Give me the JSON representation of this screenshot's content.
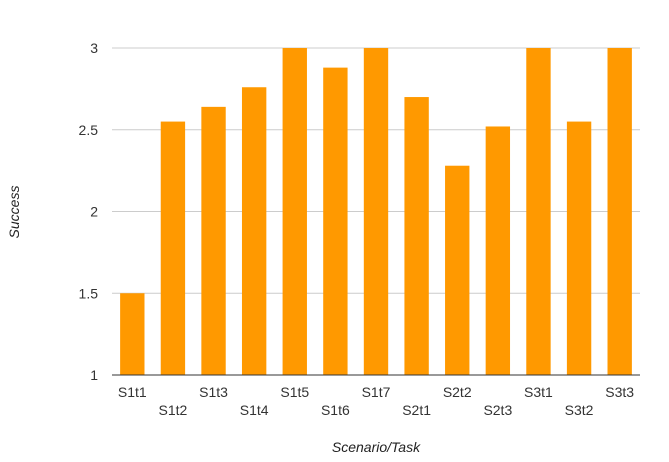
{
  "chart_data": {
    "type": "bar",
    "title": "",
    "xlabel": "Scenario/Task",
    "ylabel": "Success",
    "ylim": [
      1,
      3
    ],
    "yticks": [
      "1",
      "1.5",
      "2",
      "2.5",
      "3"
    ],
    "grid": true,
    "legend": "none",
    "categories": [
      "S1t1",
      "S1t2",
      "S1t3",
      "S1t4",
      "S1t5",
      "S1t6",
      "S1t7",
      "S2t1",
      "S2t2",
      "S2t3",
      "S3t1",
      "S3t2",
      "S3t3"
    ],
    "values": [
      1.5,
      2.55,
      2.64,
      2.76,
      3.0,
      2.88,
      3.0,
      2.7,
      2.28,
      2.52,
      3.0,
      2.55,
      3.0
    ],
    "bar_color": "#ff9900"
  }
}
